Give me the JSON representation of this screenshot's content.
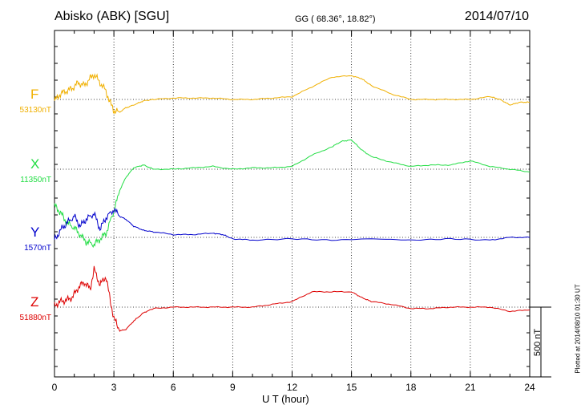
{
  "header": {
    "station": "Abisko (ABK)  [SGU]",
    "coords": "GG ( 68.36°,  18.82°)",
    "date": "2014/07/10"
  },
  "footer": {
    "plotted": "Plotted at 2014/08/10 01:30 UT"
  },
  "scale_bar_label": "500 nT",
  "chart_data": {
    "type": "line",
    "title": "Abisko (ABK)  [SGU]",
    "xlabel": "U T (hour)",
    "ylabel": "",
    "xlim": [
      0,
      24
    ],
    "xticks": [
      "0",
      "3",
      "6",
      "9",
      "12",
      "15",
      "18",
      "21",
      "24"
    ],
    "grid": true,
    "scale_nT": 500,
    "series": [
      {
        "name": "F",
        "baseline": "53130nT",
        "color": "#f0b000",
        "x": [
          0,
          0.3,
          0.6,
          0.9,
          1.2,
          1.5,
          1.8,
          2.0,
          2.3,
          2.6,
          2.8,
          3.0,
          3.3,
          3.6,
          4.0,
          4.5,
          5.0,
          6.0,
          7.0,
          8.0,
          9.0,
          10.0,
          11.0,
          12.0,
          13.0,
          14.0,
          15.0,
          15.5,
          16.0,
          17.0,
          18.0,
          19.0,
          20.0,
          21.0,
          22.0,
          22.5,
          23.0,
          23.5,
          24.0
        ],
        "values": [
          -10,
          40,
          60,
          80,
          120,
          100,
          150,
          180,
          120,
          60,
          -20,
          -80,
          -90,
          -60,
          -40,
          -10,
          0,
          10,
          10,
          10,
          0,
          0,
          10,
          20,
          90,
          160,
          170,
          150,
          100,
          40,
          0,
          0,
          0,
          0,
          20,
          0,
          -40,
          -20,
          -20
        ]
      },
      {
        "name": "X",
        "baseline": "11350nT",
        "color": "#22dd44",
        "x": [
          0,
          0.3,
          0.6,
          1.0,
          1.3,
          1.6,
          2.0,
          2.3,
          2.6,
          3.0,
          3.3,
          3.6,
          4.0,
          4.5,
          5.0,
          6.0,
          7.0,
          8.0,
          9.0,
          10.0,
          11.0,
          12.0,
          13.0,
          14.0,
          14.5,
          15.0,
          15.5,
          16.0,
          17.0,
          18.0,
          19.0,
          20.0,
          21.0,
          22.0,
          23.0,
          24.0
        ],
        "values": [
          -260,
          -310,
          -380,
          -420,
          -470,
          -520,
          -540,
          -500,
          -460,
          -300,
          -150,
          -60,
          10,
          30,
          0,
          0,
          10,
          20,
          0,
          10,
          10,
          20,
          100,
          160,
          200,
          210,
          140,
          90,
          50,
          20,
          30,
          30,
          60,
          20,
          0,
          -20
        ]
      },
      {
        "name": "Y",
        "baseline": "1570nT",
        "color": "#0000cc",
        "x": [
          0,
          0.3,
          0.6,
          1.0,
          1.3,
          1.6,
          2.0,
          2.3,
          2.6,
          3.0,
          3.3,
          3.6,
          4.0,
          4.5,
          5.0,
          6.0,
          7.0,
          8.0,
          8.5,
          9.0,
          10.0,
          12.0,
          14.0,
          16.0,
          18.0,
          20.0,
          22.0,
          23.0,
          24.0
        ],
        "values": [
          -20,
          50,
          100,
          150,
          80,
          130,
          170,
          60,
          140,
          200,
          150,
          130,
          80,
          50,
          40,
          20,
          20,
          30,
          20,
          -10,
          -20,
          -10,
          -20,
          -10,
          -20,
          -10,
          -20,
          0,
          0
        ]
      },
      {
        "name": "Z",
        "baseline": "51880nT",
        "color": "#dd0000",
        "x": [
          0,
          0.3,
          0.6,
          0.9,
          1.2,
          1.5,
          1.8,
          2.0,
          2.3,
          2.6,
          2.8,
          3.0,
          3.3,
          3.6,
          4.0,
          4.5,
          5.0,
          6.0,
          7.0,
          8.0,
          9.0,
          10.0,
          11.0,
          12.0,
          13.0,
          14.0,
          15.0,
          15.5,
          16.0,
          17.0,
          18.0,
          19.0,
          20.0,
          21.0,
          22.0,
          23.0,
          24.0
        ],
        "values": [
          10,
          40,
          50,
          70,
          140,
          180,
          130,
          270,
          160,
          220,
          60,
          -80,
          -170,
          -160,
          -100,
          -40,
          -10,
          0,
          0,
          0,
          0,
          0,
          20,
          40,
          110,
          110,
          110,
          70,
          40,
          20,
          -10,
          -10,
          0,
          0,
          0,
          -30,
          -20
        ]
      }
    ]
  }
}
